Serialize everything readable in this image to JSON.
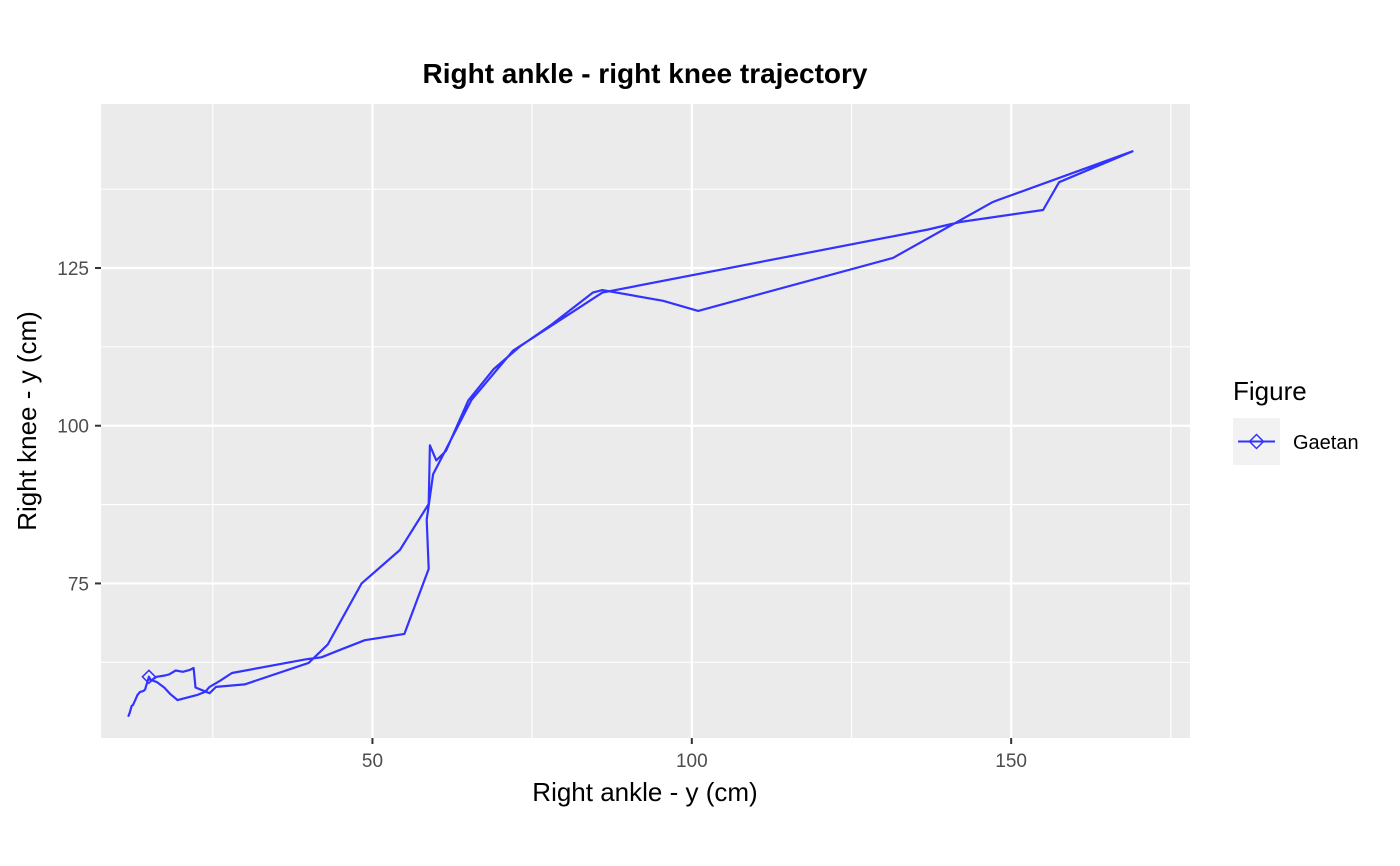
{
  "chart_data": {
    "type": "line",
    "title": "Right ankle - right knee trajectory",
    "xlabel": "Right ankle - y (cm)",
    "ylabel": "Right knee - y (cm)",
    "xlim": [
      7.5,
      178
    ],
    "ylim": [
      50.5,
      151
    ],
    "xticks": [
      50,
      100,
      150
    ],
    "yticks": [
      75,
      100,
      125
    ],
    "x_minor": [
      25,
      75,
      125,
      175
    ],
    "y_minor": [
      62.5,
      87.5,
      112.5,
      137.5
    ],
    "grid": true,
    "panel_background": "#ebebeb",
    "legend": {
      "title": "Figure",
      "position": "right",
      "entries": [
        {
          "label": "Gaetan",
          "color": "#3333ff",
          "marker": "diamond-open"
        }
      ]
    },
    "series": [
      {
        "name": "Gaetan",
        "color": "#3333ff",
        "start_marker": "diamond-open",
        "x": [
          15,
          15.3,
          15.6,
          16.2,
          17.5,
          18.2,
          19.2,
          20.3,
          21.4,
          22,
          22.3,
          24.5,
          25.5,
          30,
          40,
          43,
          48.3,
          54.3,
          58.8,
          59,
          60,
          61.5,
          65,
          69,
          73,
          78,
          84.5,
          86,
          95.5,
          101,
          131.5,
          147,
          148,
          169,
          157.5,
          155,
          142,
          137,
          86,
          72,
          65.5,
          59.5,
          58.5,
          58.8,
          55,
          48.8,
          45,
          42,
          39.8,
          28,
          26.2,
          24.5,
          23.8,
          22.5,
          19.5,
          18.3,
          17.4,
          16.2,
          15.3,
          15.0,
          14.4,
          14.2,
          14.0,
          13.6,
          13.2,
          12.9,
          12.5,
          12.3,
          12.0,
          11.8
        ],
        "y": [
          60.2,
          59.5,
          59.8,
          60.2,
          60.4,
          60.6,
          61.2,
          61.0,
          61.3,
          61.6,
          58.5,
          57.6,
          58.6,
          59,
          62.4,
          65.3,
          75,
          80.3,
          87.6,
          96.9,
          94.5,
          96,
          104,
          109,
          112.5,
          116,
          121.1,
          121.5,
          119.8,
          118.2,
          126.6,
          135.4,
          135.8,
          143.5,
          138.6,
          134.2,
          132.3,
          131.1,
          121.1,
          111.9,
          104.1,
          92.3,
          85.1,
          77.3,
          67,
          66,
          64.5,
          63.3,
          63,
          60.8,
          59.6,
          58.6,
          57.8,
          57.3,
          56.5,
          57.5,
          58.5,
          59.4,
          59.7,
          60.2,
          58.2,
          58.0,
          57.9,
          57.8,
          57.3,
          56.6,
          55.7,
          55.6,
          54.5,
          54.0
        ]
      }
    ]
  }
}
